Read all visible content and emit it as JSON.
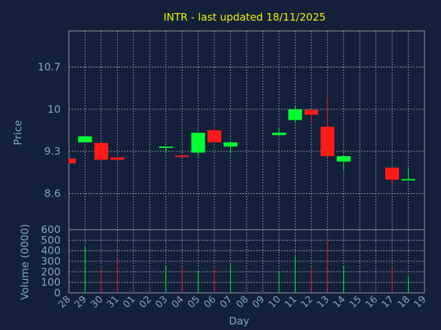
{
  "colors": {
    "background": "#12203a",
    "axes": "#a0a0a0",
    "grid": "#b8b8b8",
    "title": "#f0f000",
    "label": "#7fa6c8",
    "up": "#00ff33",
    "down": "#ff1a1a"
  },
  "chart_data": {
    "type": "candlestick",
    "title": "INTR - last updated 18/11/2025",
    "xlabel": "Day",
    "price": {
      "ylabel": "Price",
      "ylim": [
        8.0,
        11.3
      ],
      "ticks": [
        "8.6",
        "9.3",
        "10",
        "10.7"
      ],
      "tick_values": [
        8.6,
        9.3,
        10.0,
        10.7
      ]
    },
    "volume": {
      "ylabel": "Volume (0000)",
      "ylim": [
        0,
        600
      ],
      "ticks": [
        "0",
        "100",
        "200",
        "300",
        "400",
        "500",
        "600"
      ],
      "tick_values": [
        0,
        100,
        200,
        300,
        400,
        500,
        600
      ]
    },
    "grid": true,
    "x_ticks": [
      "28",
      "29",
      "30",
      "31",
      "01",
      "02",
      "03",
      "04",
      "05",
      "06",
      "07",
      "08",
      "09",
      "10",
      "11",
      "12",
      "13",
      "14",
      "15",
      "16",
      "17",
      "18",
      "19"
    ],
    "candles": [
      {
        "day": "28",
        "open": 9.18,
        "close": 9.1,
        "high": 9.18,
        "low": 9.1,
        "volume": 0
      },
      {
        "day": "29",
        "open": 9.45,
        "close": 9.55,
        "high": 9.55,
        "low": 9.45,
        "volume": 440
      },
      {
        "day": "30",
        "open": 9.44,
        "close": 9.16,
        "high": 9.44,
        "low": 9.16,
        "volume": 230
      },
      {
        "day": "31",
        "open": 9.2,
        "close": 9.16,
        "high": 9.2,
        "low": 9.16,
        "volume": 330
      },
      {
        "day": "03",
        "open": 9.37,
        "close": 9.38,
        "high": 9.38,
        "low": 9.27,
        "volume": 260
      },
      {
        "day": "04",
        "open": 9.23,
        "close": 9.22,
        "high": 9.25,
        "low": 9.22,
        "volume": 240
      },
      {
        "day": "05",
        "open": 9.28,
        "close": 9.61,
        "high": 9.61,
        "low": 9.21,
        "volume": 210
      },
      {
        "day": "06",
        "open": 9.65,
        "close": 9.45,
        "high": 9.7,
        "low": 9.45,
        "volume": 240
      },
      {
        "day": "07",
        "open": 9.38,
        "close": 9.45,
        "high": 9.45,
        "low": 9.26,
        "volume": 270
      },
      {
        "day": "10",
        "open": 9.57,
        "close": 9.61,
        "high": 9.69,
        "low": 9.57,
        "volume": 210
      },
      {
        "day": "11",
        "open": 9.82,
        "close": 10.0,
        "high": 10.05,
        "low": 9.77,
        "volume": 350
      },
      {
        "day": "12",
        "open": 9.99,
        "close": 9.91,
        "high": 9.99,
        "low": 9.78,
        "volume": 250
      },
      {
        "day": "13",
        "open": 9.71,
        "close": 9.22,
        "high": 10.21,
        "low": 9.19,
        "volume": 490
      },
      {
        "day": "14",
        "open": 9.13,
        "close": 9.22,
        "high": 9.22,
        "low": 8.99,
        "volume": 260
      },
      {
        "day": "17",
        "open": 9.03,
        "close": 8.83,
        "high": 9.03,
        "low": 8.78,
        "volume": 250
      },
      {
        "day": "18",
        "open": 8.83,
        "close": 8.84,
        "high": 9.03,
        "low": 8.83,
        "volume": 160
      }
    ]
  }
}
